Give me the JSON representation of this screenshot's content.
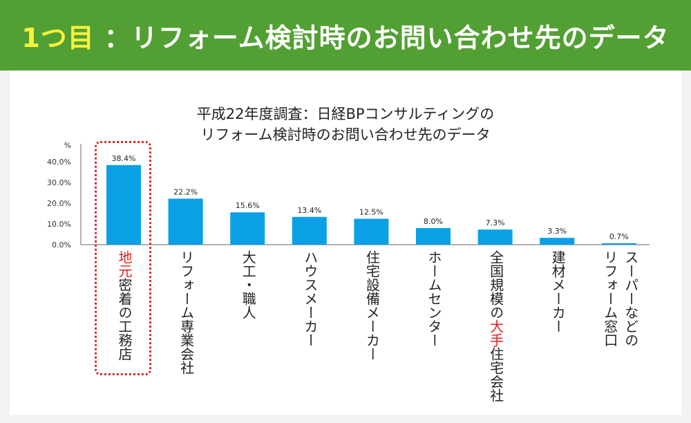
{
  "header": {
    "title_num": "1つ目",
    "title_text": "：リフォーム検討時のお問い合わせ先のデータ",
    "bg_color": "#52a033",
    "num_color": "#fff23a"
  },
  "chart_title": {
    "line1": "平成22年度調査：日経BPコンサルティングの",
    "line2": "リフォーム検討時のお問い合わせ先のデータ"
  },
  "chart_data": {
    "type": "bar",
    "ylabel": "%",
    "ylim": [
      0,
      40
    ],
    "yticks": [
      "0.0%",
      "10.0%",
      "20.0%",
      "30.0%",
      "40.0%"
    ],
    "ytick_values": [
      0,
      10,
      20,
      30,
      40
    ],
    "grid": false,
    "bar_color": "#0aa0e6",
    "highlight_color": "#d42a2a",
    "categories": [
      {
        "pre": "",
        "hl": "地元",
        "post": "密着の工務店"
      },
      {
        "pre": "リフォーム専業会社",
        "hl": "",
        "post": ""
      },
      {
        "pre": "大工・職人",
        "hl": "",
        "post": ""
      },
      {
        "pre": "ハウスメーカー",
        "hl": "",
        "post": ""
      },
      {
        "pre": "住宅設備メーカー",
        "hl": "",
        "post": ""
      },
      {
        "pre": "ホームセンター",
        "hl": "",
        "post": ""
      },
      {
        "pre": "全国規模の",
        "hl": "大手",
        "post": "住宅会社"
      },
      {
        "pre": "建材メーカー",
        "hl": "",
        "post": ""
      },
      {
        "pre": "スーパーなどの",
        "line2": "リフォーム窓口",
        "hl": "",
        "post": ""
      }
    ],
    "values": [
      38.4,
      22.2,
      15.6,
      13.4,
      12.5,
      8.0,
      7.3,
      3.3,
      0.7
    ],
    "value_labels": [
      "38.4%",
      "22.2%",
      "15.6%",
      "13.4%",
      "12.5%",
      "8.0%",
      "7.3%",
      "3.3%",
      "0.7%"
    ],
    "highlighted_index": 0
  }
}
